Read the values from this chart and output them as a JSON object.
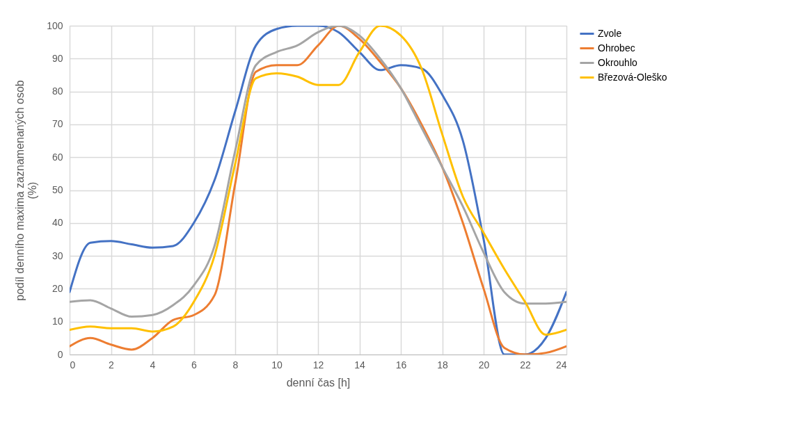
{
  "chart_data": {
    "type": "line",
    "xlabel": "denní čas [h]",
    "ylabel": "podíl denního maxima zaznamenaných osob (%)",
    "x": [
      0,
      1,
      2,
      3,
      4,
      5,
      6,
      7,
      8,
      9,
      10,
      11,
      12,
      13,
      14,
      15,
      16,
      17,
      18,
      19,
      20,
      21,
      22,
      23,
      24
    ],
    "series": [
      {
        "name": "Zvole",
        "color": "#4472c4",
        "values": [
          19,
          34,
          34.5,
          33.5,
          32.5,
          33,
          40,
          53,
          74,
          94,
          99,
          100,
          100,
          98,
          92,
          86.5,
          88,
          87,
          79,
          65,
          35,
          0,
          0,
          5,
          19
        ]
      },
      {
        "name": "Ohrobec",
        "color": "#ed7d31",
        "values": [
          2.5,
          5,
          3,
          1.5,
          5,
          10.5,
          12,
          18,
          52,
          86,
          88,
          88,
          94,
          100,
          96,
          89,
          81,
          70,
          57,
          40,
          20,
          2,
          0,
          0.5,
          2.5
        ]
      },
      {
        "name": "Okrouhlo",
        "color": "#a5a5a5",
        "values": [
          16,
          16.5,
          14,
          11.5,
          12,
          15,
          21,
          33,
          62,
          88,
          92,
          94,
          98,
          100,
          97,
          90,
          81,
          69,
          57,
          45,
          31,
          19,
          15.5,
          15.5,
          16
        ]
      },
      {
        "name": "Březová-Oleško",
        "color": "#ffc000",
        "values": [
          7.5,
          8.5,
          8,
          8,
          7,
          8.5,
          16,
          30,
          58,
          84,
          85.5,
          84.5,
          82,
          82,
          92,
          100,
          97,
          87,
          67,
          48,
          37,
          26,
          16,
          6,
          7.5
        ]
      }
    ],
    "xlim": [
      0,
      24
    ],
    "xticks": [
      0,
      2,
      4,
      6,
      8,
      10,
      12,
      14,
      16,
      18,
      20,
      22,
      24
    ],
    "ylim": [
      0,
      100
    ],
    "yticks": [
      0,
      10,
      20,
      30,
      40,
      50,
      60,
      70,
      80,
      90,
      100
    ],
    "grid": true,
    "legend": "right",
    "marker": "none",
    "line_style": "solid"
  }
}
